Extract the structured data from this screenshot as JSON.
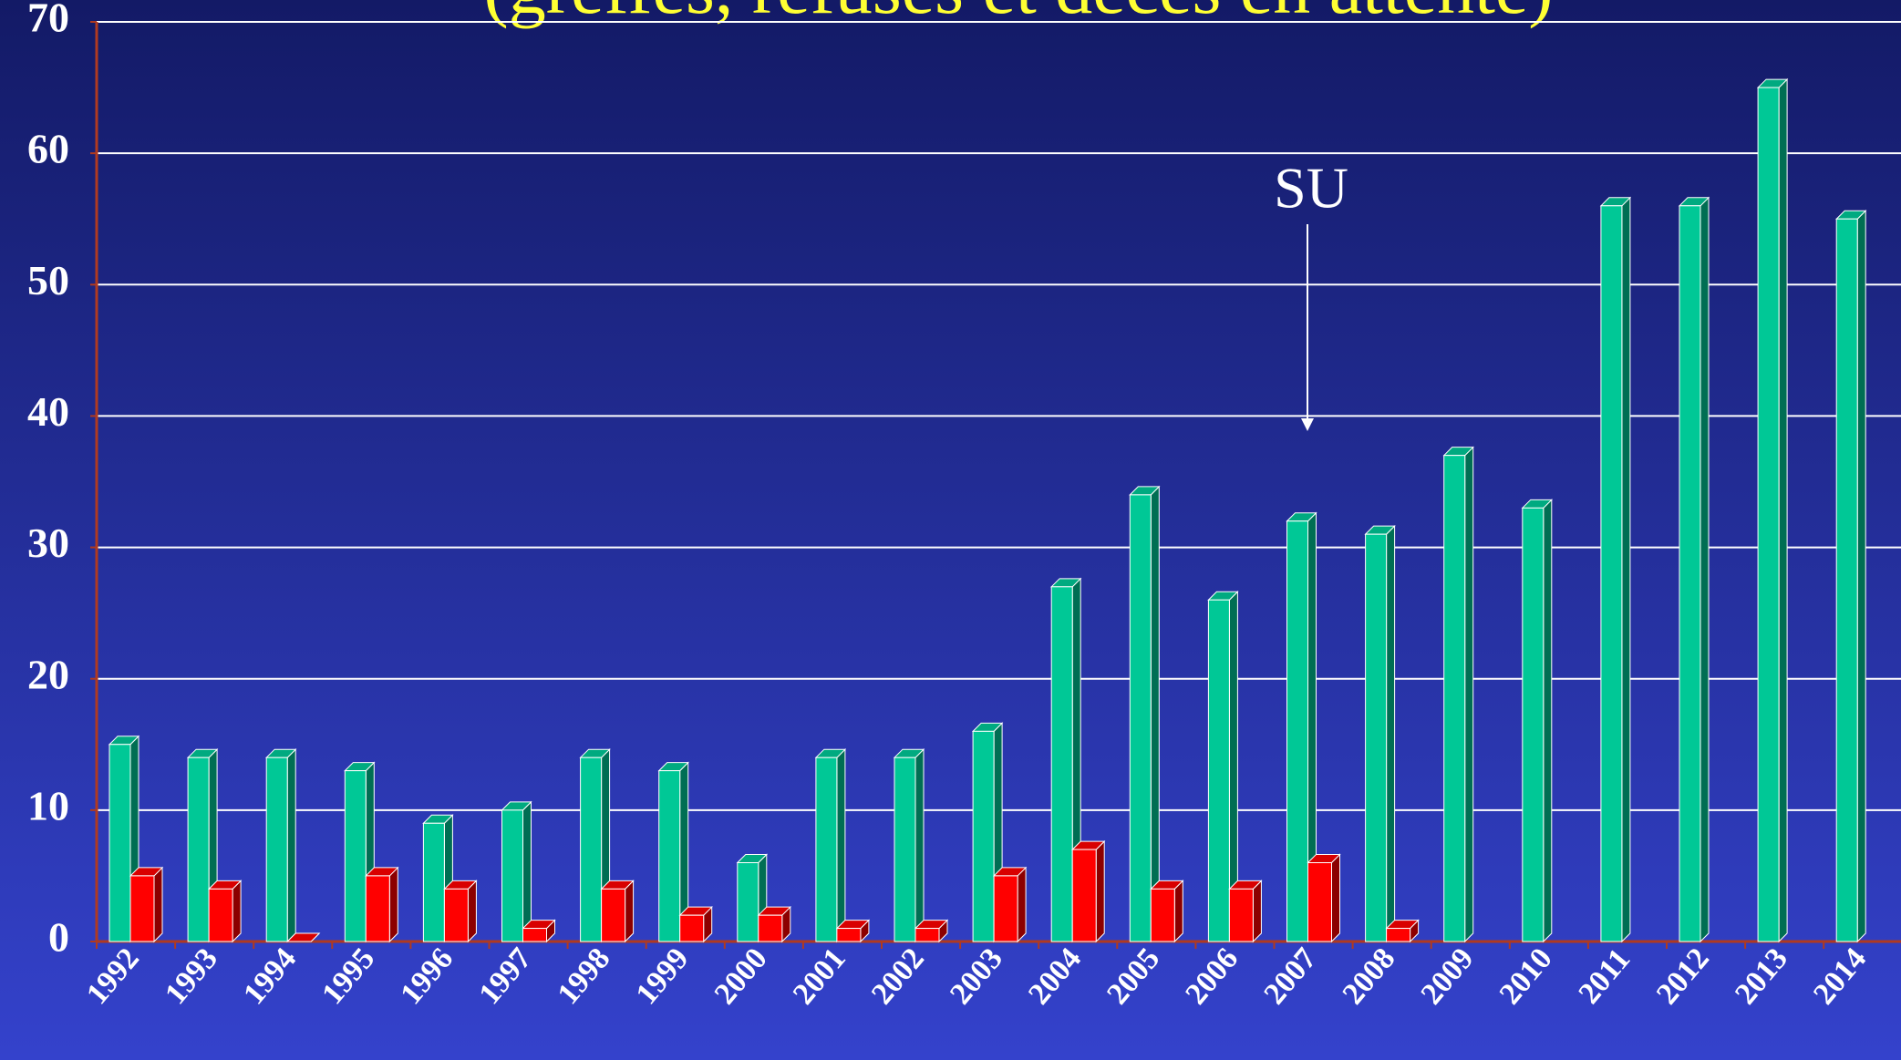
{
  "chart_data": {
    "type": "bar3d",
    "title": "(greffes, refusés et décès en attente)",
    "annotation": "SU",
    "categories": [
      "1992",
      "1993",
      "1994",
      "1995",
      "1996",
      "1997",
      "1998",
      "1999",
      "2000",
      "2001",
      "2002",
      "2003",
      "2004",
      "2005",
      "2006",
      "2007",
      "2008",
      "2009",
      "2010",
      "2011",
      "2012",
      "2013",
      "2014"
    ],
    "series": [
      {
        "color": "#00c896",
        "values": [
          15,
          14,
          14,
          13,
          9,
          10,
          14,
          13,
          6,
          14,
          14,
          16,
          27,
          34,
          26,
          32,
          31,
          37,
          33,
          56,
          56,
          65,
          55
        ]
      },
      {
        "color": "#ff0000",
        "values": [
          5,
          4,
          0,
          5,
          4,
          1,
          4,
          2,
          2,
          1,
          1,
          5,
          7,
          4,
          4,
          6,
          1,
          null,
          null,
          null,
          null,
          null,
          null
        ]
      }
    ],
    "ylim": [
      0,
      70
    ],
    "yticks": [
      0,
      10,
      20,
      30,
      40,
      50,
      60,
      70
    ],
    "grid": true
  }
}
